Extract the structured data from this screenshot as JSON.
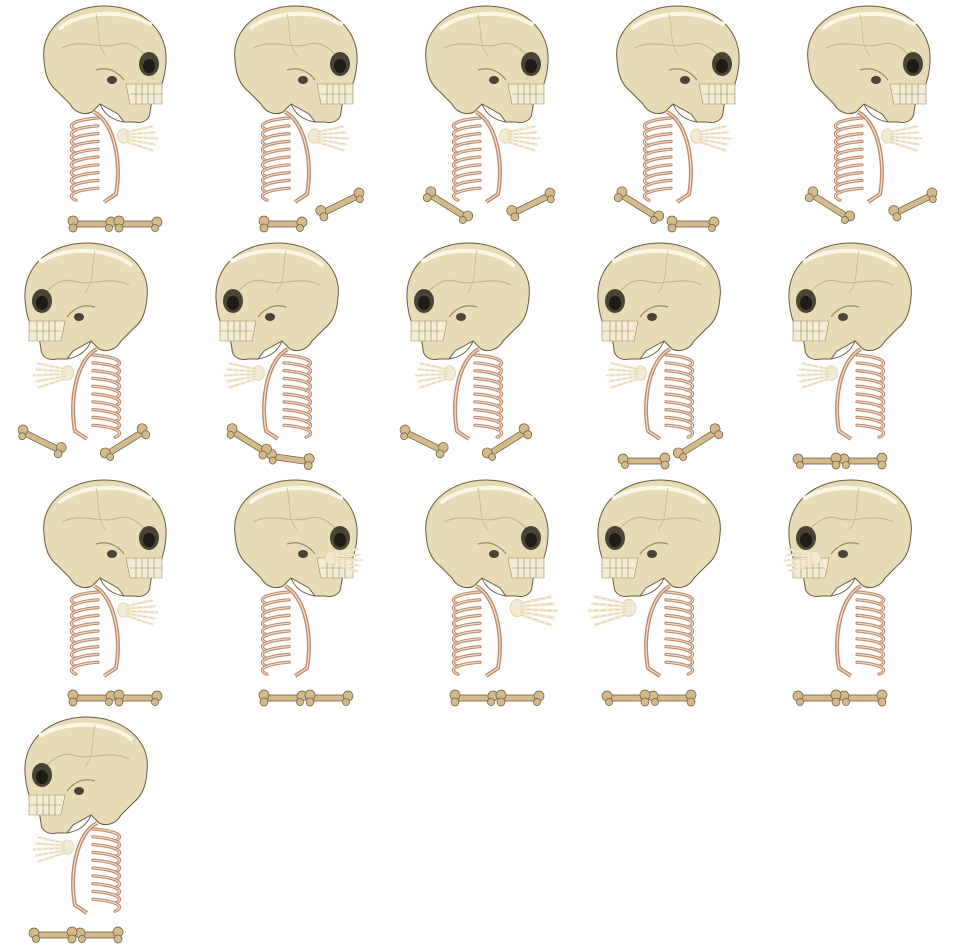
{
  "sprite_sheet": {
    "grid": {
      "columns": 5,
      "rows": 4
    },
    "frame_count": 16,
    "frames": [
      {
        "index": 1,
        "facing": "right",
        "hand": "front",
        "bones": "together",
        "pose": ""
      },
      {
        "index": 2,
        "facing": "right",
        "hand": "front",
        "bones": "split-up",
        "pose": ""
      },
      {
        "index": 3,
        "facing": "right",
        "hand": "front",
        "bones": "spread",
        "pose": ""
      },
      {
        "index": 4,
        "facing": "right",
        "hand": "front",
        "bones": "pair-low",
        "pose": ""
      },
      {
        "index": 5,
        "facing": "right",
        "hand": "front",
        "bones": "spread",
        "pose": ""
      },
      {
        "index": 6,
        "facing": "left",
        "hand": "front",
        "bones": "spread",
        "pose": ""
      },
      {
        "index": 7,
        "facing": "left",
        "hand": "front",
        "bones": "diag-up",
        "pose": ""
      },
      {
        "index": 8,
        "facing": "left",
        "hand": "front",
        "bones": "spread",
        "pose": ""
      },
      {
        "index": 9,
        "facing": "left",
        "hand": "front",
        "bones": "pair-low",
        "pose": ""
      },
      {
        "index": 10,
        "facing": "left",
        "hand": "front",
        "bones": "together",
        "pose": ""
      },
      {
        "index": 11,
        "facing": "right",
        "hand": "front",
        "bones": "together",
        "pose": ""
      },
      {
        "index": 12,
        "facing": "right",
        "hand": "face",
        "bones": "together",
        "pose": ""
      },
      {
        "index": 13,
        "facing": "right",
        "hand": "reach",
        "bones": "together",
        "pose": ""
      },
      {
        "index": 14,
        "facing": "left",
        "hand": "reach",
        "bones": "together",
        "pose": ""
      },
      {
        "index": 15,
        "facing": "left",
        "hand": "face",
        "bones": "together",
        "pose": ""
      },
      {
        "index": 16,
        "facing": "left",
        "hand": "front",
        "bones": "together",
        "pose": ""
      }
    ],
    "colors": {
      "background": "#ffffff",
      "bone": "#e8dcb8",
      "bone_shade": "#c9b88a",
      "bone_dark": "#9c8a5c",
      "outline": "#6b5a3a",
      "eye_socket": "#4a4438",
      "rib": "#c08a66",
      "rib_light": "#f1e4d6",
      "hand": "#f3ead2",
      "femur": "#d3b98c"
    }
  }
}
